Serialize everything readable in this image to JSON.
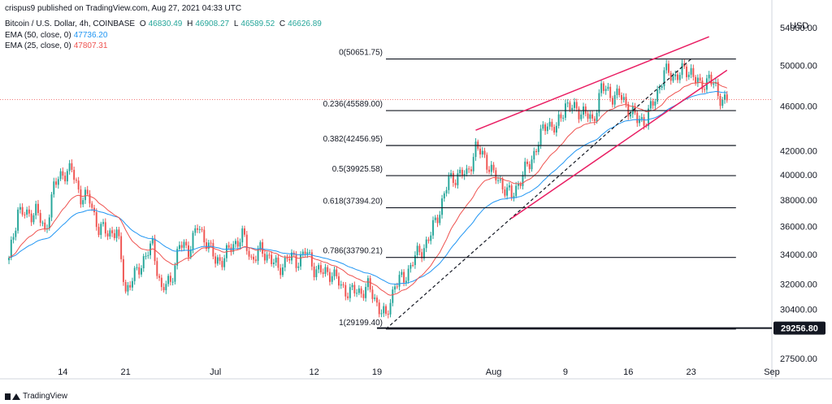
{
  "header": {
    "published": "crispus9 published on TradingView.com, Aug 27, 2021 04:33 UTC"
  },
  "legend": {
    "symbol": "Bitcoin / U.S. Dollar, 4h, COINBASE",
    "open_label": "O",
    "open": "46830.49",
    "high_label": "H",
    "high": "46908.27",
    "low_label": "L",
    "low": "46589.52",
    "close_label": "C",
    "close": "46626.89",
    "ema50_label": "EMA (50, close, 0)",
    "ema50": "47736.20",
    "ema25_label": "EMA (25, close, 0)",
    "ema25": "47807.31"
  },
  "footer": {
    "brand": "TradingView"
  },
  "colors": {
    "up": "#26a69a",
    "down": "#ef5350",
    "ema50": "#2196f3",
    "ema25": "#ef5350",
    "channel": "#e91e63",
    "fib": "#131722",
    "price_tag": "#131722"
  },
  "chart_data": {
    "type": "line",
    "title": "Bitcoin / U.S. Dollar, 4h, COINBASE",
    "xlabel": "",
    "ylabel": "",
    "y_unit": "USD",
    "y_scale": "log",
    "ylim": [
      27000,
      56000
    ],
    "x_ticks": [
      "14",
      "21",
      "Jul",
      "12",
      "19",
      "Aug",
      "9",
      "16",
      "23",
      "Sep"
    ],
    "y_ticks": [
      "54000.00",
      "50000.00",
      "46000.00",
      "42000.00",
      "40000.00",
      "38000.00",
      "36000.00",
      "34000.00",
      "32000.00",
      "30400.00",
      "27500.00"
    ],
    "current_price_label": "29256.80",
    "x_start": "2021-06-07",
    "x_end": "2021-09-01",
    "close_series": [
      [
        "2021-06-08",
        33500
      ],
      [
        "2021-06-09",
        37300
      ],
      [
        "2021-06-10",
        36700
      ],
      [
        "2021-06-11",
        37300
      ],
      [
        "2021-06-12",
        35500
      ],
      [
        "2021-06-13",
        39000
      ],
      [
        "2021-06-14",
        40200
      ],
      [
        "2021-06-15",
        40300
      ],
      [
        "2021-06-16",
        38300
      ],
      [
        "2021-06-17",
        38000
      ],
      [
        "2021-06-18",
        35800
      ],
      [
        "2021-06-19",
        35600
      ],
      [
        "2021-06-20",
        35600
      ],
      [
        "2021-06-21",
        31600
      ],
      [
        "2021-06-22",
        32500
      ],
      [
        "2021-06-23",
        33700
      ],
      [
        "2021-06-24",
        34600
      ],
      [
        "2021-06-25",
        31600
      ],
      [
        "2021-06-26",
        32200
      ],
      [
        "2021-06-27",
        34600
      ],
      [
        "2021-06-28",
        34400
      ],
      [
        "2021-06-29",
        35900
      ],
      [
        "2021-06-30",
        35000
      ],
      [
        "2021-07-01",
        33500
      ],
      [
        "2021-07-02",
        33800
      ],
      [
        "2021-07-03",
        34700
      ],
      [
        "2021-07-04",
        35300
      ],
      [
        "2021-07-05",
        33700
      ],
      [
        "2021-07-06",
        34200
      ],
      [
        "2021-07-07",
        33900
      ],
      [
        "2021-07-08",
        32900
      ],
      [
        "2021-07-09",
        33800
      ],
      [
        "2021-07-10",
        33500
      ],
      [
        "2021-07-11",
        34200
      ],
      [
        "2021-07-12",
        33100
      ],
      [
        "2021-07-13",
        32700
      ],
      [
        "2021-07-14",
        32800
      ],
      [
        "2021-07-15",
        31800
      ],
      [
        "2021-07-16",
        31500
      ],
      [
        "2021-07-17",
        31500
      ],
      [
        "2021-07-18",
        31800
      ],
      [
        "2021-07-19",
        30800
      ],
      [
        "2021-07-20",
        29800
      ],
      [
        "2021-07-21",
        32100
      ],
      [
        "2021-07-22",
        32300
      ],
      [
        "2021-07-23",
        33600
      ],
      [
        "2021-07-24",
        34300
      ],
      [
        "2021-07-25",
        35400
      ],
      [
        "2021-07-26",
        37300
      ],
      [
        "2021-07-27",
        39500
      ],
      [
        "2021-07-28",
        40000
      ],
      [
        "2021-07-29",
        40000
      ],
      [
        "2021-07-30",
        42200
      ],
      [
        "2021-07-31",
        41500
      ],
      [
        "2021-08-01",
        39900
      ],
      [
        "2021-08-02",
        39200
      ],
      [
        "2021-08-03",
        38200
      ],
      [
        "2021-08-04",
        39700
      ],
      [
        "2021-08-05",
        40900
      ],
      [
        "2021-08-06",
        42800
      ],
      [
        "2021-08-07",
        44600
      ],
      [
        "2021-08-08",
        43800
      ],
      [
        "2021-08-09",
        46300
      ],
      [
        "2021-08-10",
        45600
      ],
      [
        "2021-08-11",
        45600
      ],
      [
        "2021-08-12",
        44400
      ],
      [
        "2021-08-13",
        47800
      ],
      [
        "2021-08-14",
        47100
      ],
      [
        "2021-08-15",
        47000
      ],
      [
        "2021-08-16",
        45900
      ],
      [
        "2021-08-17",
        44700
      ],
      [
        "2021-08-18",
        44800
      ],
      [
        "2021-08-19",
        46700
      ],
      [
        "2021-08-20",
        49300
      ],
      [
        "2021-08-21",
        48900
      ],
      [
        "2021-08-22",
        49300
      ],
      [
        "2021-08-23",
        49500
      ],
      [
        "2021-08-24",
        47700
      ],
      [
        "2021-08-25",
        48900
      ],
      [
        "2021-08-26",
        47000
      ],
      [
        "2021-08-27",
        46630
      ]
    ],
    "fib_levels": [
      {
        "label": "0(50651.75)",
        "ratio": 0,
        "price": 50651.75
      },
      {
        "label": "0.236(45589.00)",
        "ratio": 0.236,
        "price": 45589.0
      },
      {
        "label": "0.382(42456.95)",
        "ratio": 0.382,
        "price": 42456.95
      },
      {
        "label": "0.5(39925.58)",
        "ratio": 0.5,
        "price": 39925.58
      },
      {
        "label": "0.618(37394.20)",
        "ratio": 0.618,
        "price": 37394.2
      },
      {
        "label": "0.786(33790.21)",
        "ratio": 0.786,
        "price": 33790.21
      },
      {
        "label": "1(29199.40)",
        "ratio": 1,
        "price": 29199.4
      }
    ],
    "fib_start": "2021-07-20",
    "fib_end": "2021-08-28",
    "trendline": {
      "from": [
        "2021-07-20",
        29199.4
      ],
      "to": [
        "2021-08-23",
        50651.75
      ]
    },
    "channel": {
      "upper": {
        "from": [
          "2021-07-30",
          43800
        ],
        "to": [
          "2021-08-25",
          53000
        ]
      },
      "lower": {
        "from": [
          "2021-08-03",
          36600
        ],
        "to": [
          "2021-08-27",
          49500
        ]
      }
    },
    "horizontal_line": {
      "from": "2021-07-19",
      "price": 29256.8
    },
    "current_price_line": 46626.89
  }
}
